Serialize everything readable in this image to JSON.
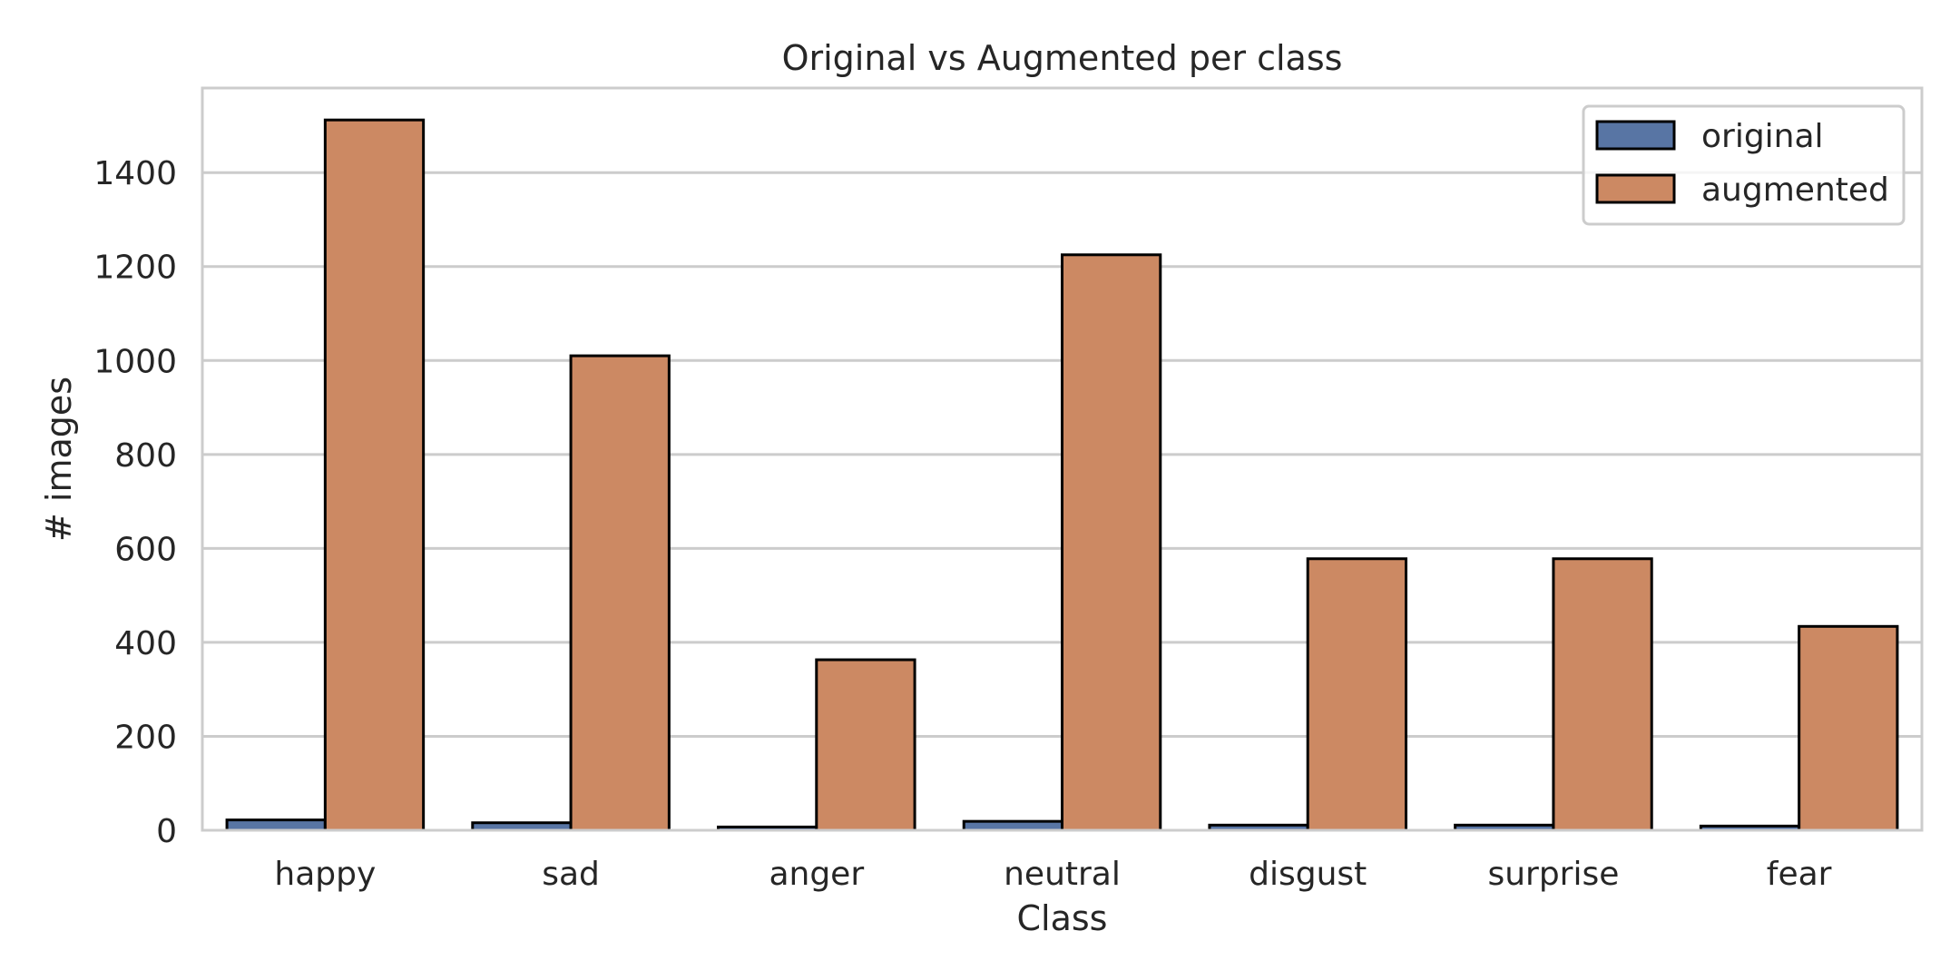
{
  "chart_data": {
    "type": "bar",
    "title": "Original vs Augmented per class",
    "xlabel": "Class",
    "ylabel": "# images",
    "categories": [
      "happy",
      "sad",
      "anger",
      "neutral",
      "disgust",
      "surprise",
      "fear"
    ],
    "series": [
      {
        "name": "original",
        "color": "#5875a4",
        "values": [
          22,
          16,
          7,
          19,
          11,
          11,
          9
        ]
      },
      {
        "name": "augmented",
        "color": "#cc8963",
        "values": [
          1512,
          1010,
          363,
          1225,
          578,
          578,
          434
        ]
      }
    ],
    "ylim": [
      0,
      1580
    ],
    "yticks": [
      0,
      200,
      400,
      600,
      800,
      1000,
      1200,
      1400
    ],
    "grid": true,
    "legend_position": "top-right"
  }
}
